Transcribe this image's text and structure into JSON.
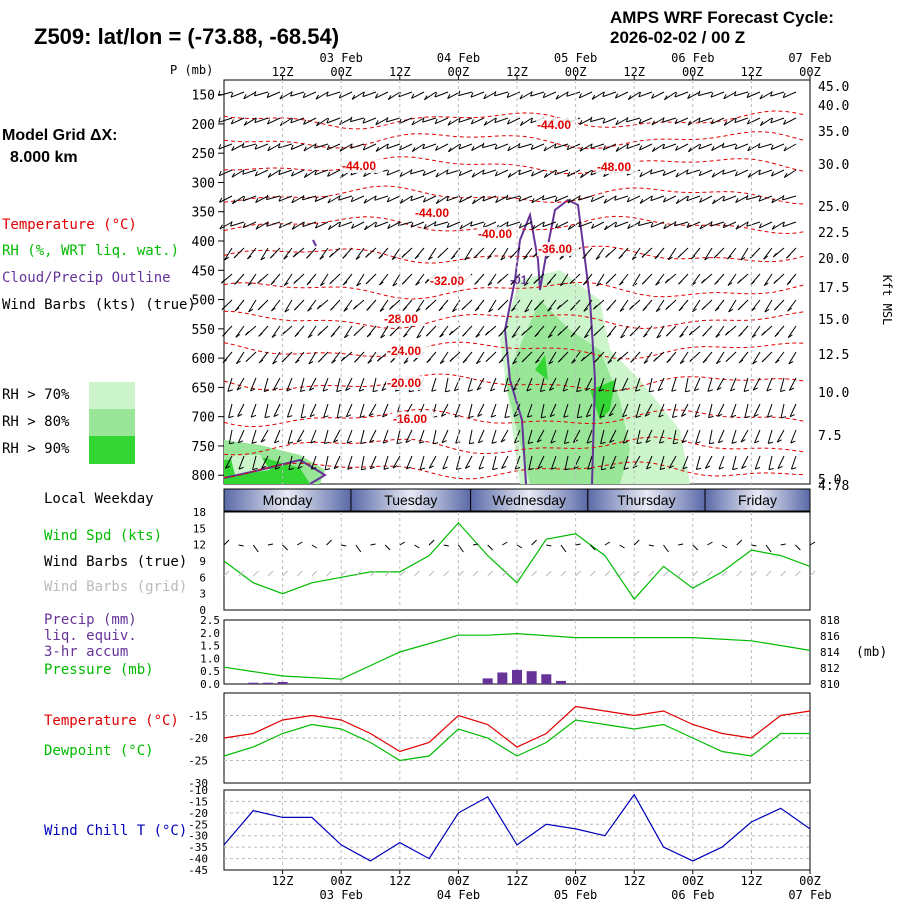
{
  "header": {
    "station_title": "Z509:  lat/lon = (-73.88, -68.54)",
    "cycle_line1": "AMPS WRF Forecast Cycle:",
    "cycle_line2": "2026-02-02 / 00  Z"
  },
  "sidebar": {
    "grid_line1": "Model Grid ΔX:",
    "grid_line2": "8.000 km",
    "legend_temp": "Temperature (°C)",
    "legend_rh": "RH (%, WRT liq. wat.)",
    "legend_cloud": "Cloud/Precip Outline",
    "legend_wind": "Wind Barbs (kts) (true)",
    "rh_levels": [
      {
        "label": "RH > 70%",
        "color": "#ccf5cc"
      },
      {
        "label": "RH > 80%",
        "color": "#99e699"
      },
      {
        "label": "RH > 90%",
        "color": "#33d633"
      }
    ],
    "local_weekday": "Local Weekday",
    "windspd_label": "Wind Spd (kts)",
    "barbs_true_label": "Wind Barbs (true)",
    "barbs_grid_label": "Wind Barbs (grid)",
    "precip_label1": "Precip (mm)",
    "precip_label2": "liq. equiv.",
    "precip_label3": "3-hr accum",
    "pressure_label": "Pressure (mb)",
    "temp_label": "Temperature (°C)",
    "dewpoint_label": "Dewpoint (°C)",
    "windchill_label": "Wind Chill T (°C)"
  },
  "colors": {
    "temp": "#e00000",
    "rh": "#00bb00",
    "cloud": "#663399",
    "wind_chill": "#0000bb",
    "grid_barbs": "#bbbbbb",
    "weekday_band": "#5a6aa8"
  },
  "time_axis": {
    "hour_labels": [
      "12Z",
      "00Z",
      "12Z",
      "00Z",
      "12Z",
      "00Z",
      "12Z",
      "00Z",
      "12Z",
      "00Z"
    ],
    "date_labels": [
      "03 Feb",
      "04 Feb",
      "05 Feb",
      "06 Feb",
      "07 Feb"
    ],
    "weekdays": [
      "Monday",
      "Tuesday",
      "Wednesday",
      "Thursday",
      "Friday"
    ]
  },
  "chart_data": [
    {
      "type": "contour",
      "title": "Time-height cross section",
      "ylabel_left": "P (mb)",
      "ylabel_right": "Kft MSL",
      "pressure_ticks": [
        150,
        200,
        250,
        300,
        350,
        400,
        450,
        500,
        550,
        600,
        650,
        700,
        750,
        800
      ],
      "kft_ticks": [
        "45.0",
        "40.0",
        "35.0",
        "30.0",
        "25.0",
        "22.5",
        "20.0",
        "17.5",
        "15.0",
        "12.5",
        "10.0",
        "7.5",
        "5.0",
        "4.78"
      ],
      "temperature_contour_labels": [
        "-44.00",
        "-44.00",
        "-48.00",
        "-44.00",
        "-40.00",
        "-36.00",
        "-32.00",
        "-28.00",
        "-24.00",
        "-20.00",
        "-16.00"
      ],
      "extra_labels": [
        "-01"
      ]
    },
    {
      "type": "line",
      "title": "Wind Speed",
      "ylabel": "Wind Spd (kts)",
      "yticks": [
        0,
        3,
        6,
        9,
        12,
        15,
        18
      ],
      "ylim": [
        0,
        18
      ],
      "x_hours": [
        0,
        6,
        12,
        18,
        24,
        30,
        36,
        42,
        48,
        54,
        60,
        66,
        72,
        78,
        84,
        90,
        96,
        102,
        108,
        114,
        120
      ],
      "values": [
        9,
        5,
        3,
        5,
        6,
        7,
        7,
        10,
        16,
        10,
        5,
        13,
        14,
        10,
        2,
        8,
        4,
        7,
        11,
        10,
        8
      ]
    },
    {
      "type": "bar+line",
      "title": "Precip and Pressure",
      "precip_yticks": [
        "0.0",
        "0.5",
        "1.0",
        "1.5",
        "2.0",
        "2.5"
      ],
      "pressure_yticks": [
        "810",
        "812",
        "814",
        "816",
        "818"
      ],
      "pressure_unit": "(mb)",
      "precip_x_hours": [
        6,
        9,
        12,
        54,
        57,
        60,
        63,
        66,
        69
      ],
      "precip_values": [
        0.05,
        0.05,
        0.08,
        0.22,
        0.45,
        0.55,
        0.5,
        0.38,
        0.12
      ],
      "pressure_x_hours": [
        0,
        12,
        24,
        36,
        48,
        54,
        60,
        72,
        84,
        96,
        108,
        120
      ],
      "pressure_values": [
        812.1,
        811.0,
        810.6,
        814.0,
        816.1,
        816.1,
        816.3,
        815.8,
        815.8,
        815.8,
        815.4,
        814.2
      ]
    },
    {
      "type": "line",
      "title": "Temperature and Dewpoint",
      "yticks": [
        -30,
        -25,
        -20,
        -15
      ],
      "ylim": [
        -30,
        -10
      ],
      "x_hours": [
        0,
        6,
        12,
        18,
        24,
        30,
        36,
        42,
        48,
        54,
        60,
        66,
        72,
        78,
        84,
        90,
        96,
        102,
        108,
        114,
        120
      ],
      "series": [
        {
          "name": "Temperature",
          "values": [
            -20,
            -19,
            -16,
            -15,
            -16,
            -19,
            -23,
            -21,
            -15,
            -17,
            -22,
            -19,
            -13,
            -14,
            -15,
            -14,
            -17,
            -19,
            -20,
            -15,
            -14
          ]
        },
        {
          "name": "Dewpoint",
          "values": [
            -24,
            -22,
            -19,
            -17,
            -18,
            -21,
            -25,
            -24,
            -18,
            -20,
            -24,
            -21,
            -16,
            -17,
            -18,
            -17,
            -20,
            -23,
            -24,
            -19,
            -19
          ]
        }
      ]
    },
    {
      "type": "line",
      "title": "Wind Chill",
      "yticks": [
        -45,
        -40,
        -35,
        -30,
        -25,
        -20,
        -15,
        -10
      ],
      "ylim": [
        -45,
        -10
      ],
      "x_hours": [
        0,
        6,
        12,
        18,
        24,
        30,
        36,
        42,
        48,
        54,
        60,
        66,
        72,
        78,
        84,
        90,
        96,
        102,
        108,
        114,
        120
      ],
      "values": [
        -34,
        -19,
        -22,
        -22,
        -34,
        -41,
        -33,
        -40,
        -20,
        -13,
        -34,
        -25,
        -27,
        -30,
        -12,
        -35,
        -41,
        -35,
        -24,
        -18,
        -27
      ]
    }
  ]
}
